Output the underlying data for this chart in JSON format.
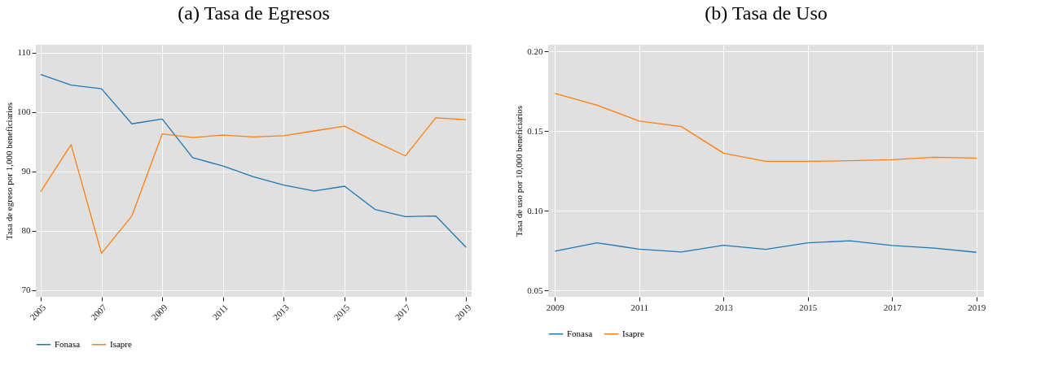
{
  "chart_data": [
    {
      "type": "line",
      "title": "(a) Tasa de Egresos",
      "ylabel": "Tasa de egreso por 1,000 beneficiarios",
      "x": [
        2005,
        2006,
        2007,
        2008,
        2009,
        2010,
        2011,
        2012,
        2013,
        2014,
        2015,
        2016,
        2017,
        2018,
        2019
      ],
      "series": [
        {
          "name": "Fonasa",
          "color": "#1f77b4",
          "values": [
            106.3,
            104.5,
            103.9,
            98.0,
            98.8,
            92.3,
            90.9,
            89.1,
            87.7,
            86.7,
            87.5,
            83.6,
            82.4,
            82.5,
            77.2
          ]
        },
        {
          "name": "Isapre",
          "color": "#ff7f0e",
          "values": [
            86.6,
            94.5,
            76.2,
            82.5,
            96.3,
            95.7,
            96.1,
            95.8,
            96.0,
            96.8,
            97.6,
            95.0,
            92.6,
            99.0,
            98.7
          ]
        }
      ],
      "xlim": [
        2004.84,
        2019.18
      ],
      "xticks": [
        2005,
        2007,
        2009,
        2011,
        2013,
        2015,
        2017,
        2019
      ],
      "ylim": [
        68.9,
        111.3
      ],
      "yticks": [
        70,
        80,
        90,
        100,
        110
      ],
      "grid": true,
      "legend": "bottom"
    },
    {
      "type": "line",
      "title": "(b) Tasa de Uso",
      "ylabel": "Tasa de uso por 10,000 beneficiarios",
      "x": [
        2009,
        2010,
        2011,
        2012,
        2013,
        2014,
        2015,
        2016,
        2017,
        2018,
        2019
      ],
      "series": [
        {
          "name": "Fonasa",
          "color": "#1f77b4",
          "values": [
            0.0747,
            0.0799,
            0.076,
            0.0742,
            0.0784,
            0.0758,
            0.0799,
            0.0812,
            0.0783,
            0.0766,
            0.074
          ]
        },
        {
          "name": "Isapre",
          "color": "#ff7f0e",
          "values": [
            0.1736,
            0.1662,
            0.1563,
            0.1528,
            0.1361,
            0.131,
            0.131,
            0.1314,
            0.132,
            0.1336,
            0.1331
          ]
        }
      ],
      "xlim": [
        2008.84,
        2019.18
      ],
      "xticks": [
        2009,
        2011,
        2013,
        2015,
        2017,
        2019
      ],
      "ylim": [
        0.0461,
        0.2041
      ],
      "yticks": [
        {
          "value": 0.05,
          "label": "0.05"
        },
        {
          "value": 0.1,
          "label": "0.10"
        },
        {
          "value": 0.15,
          "label": "0.15"
        },
        {
          "value": 0.2,
          "label": "0.20"
        }
      ],
      "grid": true,
      "legend": "bottom"
    }
  ]
}
